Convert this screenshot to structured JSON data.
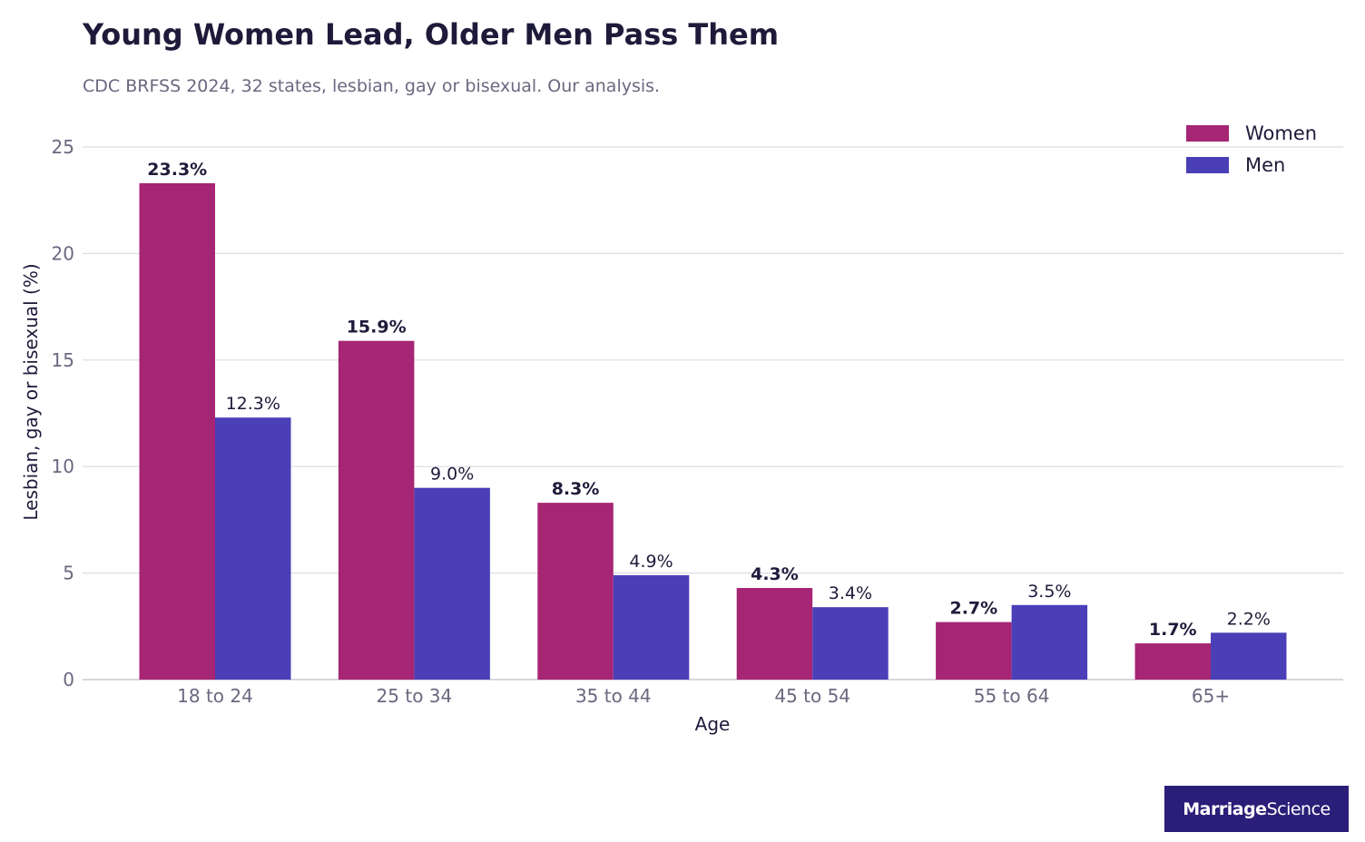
{
  "colors": {
    "women": "#a62574",
    "men": "#4b3fb8",
    "text_dark": "#1e1b3a",
    "text_muted": "#6b6880",
    "grid": "#dcdce4",
    "logo_bg": "#2a1e78"
  },
  "logo": {
    "part1": "Marriage",
    "part2": "Science"
  },
  "chart_data": {
    "type": "bar",
    "title": "Young Women Lead, Older Men Pass Them",
    "subtitle": "CDC BRFSS 2024, 32 states, lesbian, gay or bisexual. Our analysis.",
    "xlabel": "Age",
    "ylabel": "Lesbian, gay or bisexual (%)",
    "ylim": [
      0,
      25
    ],
    "yticks": [
      0,
      5,
      10,
      15,
      20,
      25
    ],
    "grid": true,
    "legend_position": "top-right",
    "categories": [
      "18 to 24",
      "25 to 34",
      "35 to 44",
      "45 to 54",
      "55 to 64",
      "65+"
    ],
    "series": [
      {
        "name": "Women",
        "values": [
          23.3,
          15.9,
          8.3,
          4.3,
          2.7,
          1.7
        ],
        "labels": [
          "23.3%",
          "15.9%",
          "8.3%",
          "4.3%",
          "2.7%",
          "1.7%"
        ]
      },
      {
        "name": "Men",
        "values": [
          12.3,
          9.0,
          4.9,
          3.4,
          3.5,
          2.2
        ],
        "labels": [
          "12.3%",
          "9.0%",
          "4.9%",
          "3.4%",
          "3.5%",
          "2.2%"
        ]
      }
    ]
  }
}
